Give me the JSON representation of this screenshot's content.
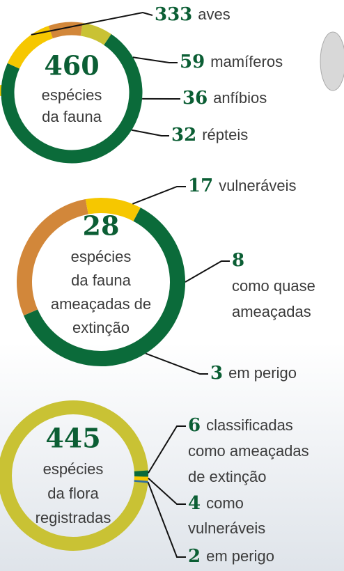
{
  "chart_data": [
    {
      "type": "donut",
      "center_value": 460,
      "center_label": [
        "espécies",
        "da fauna"
      ],
      "categories": [
        [
          "aves"
        ],
        [
          "mamíferos"
        ],
        [
          "anfíbios"
        ],
        [
          "répteis"
        ]
      ],
      "values": [
        333,
        59,
        36,
        32
      ],
      "colors": [
        "#0b6b3a",
        "#f6c700",
        "#d2873a",
        "#c9c234"
      ]
    },
    {
      "type": "donut",
      "center_value": 28,
      "center_label": [
        "espécies",
        "da fauna",
        "ameaçadas de",
        "extinção"
      ],
      "categories": [
        [
          "vulneráveis"
        ],
        [
          "como quase",
          "ameaçadas"
        ],
        [
          "em perigo"
        ]
      ],
      "values": [
        17,
        8,
        3
      ],
      "colors": [
        "#0b6b3a",
        "#d2873a",
        "#f6c700"
      ]
    },
    {
      "type": "donut",
      "center_value": 445,
      "center_label": [
        "espécies",
        "da flora",
        "registradas"
      ],
      "categories": [
        [
          "classificadas",
          "como ameaçadas",
          "de extinção"
        ],
        [
          "como",
          "vulneráveis"
        ],
        [
          "em perigo"
        ]
      ],
      "values": [
        6,
        4,
        2
      ],
      "colors": [
        "#0b6b3a",
        "#f6c700",
        "#2f6fa0"
      ],
      "base_color": "#c9c234"
    }
  ]
}
